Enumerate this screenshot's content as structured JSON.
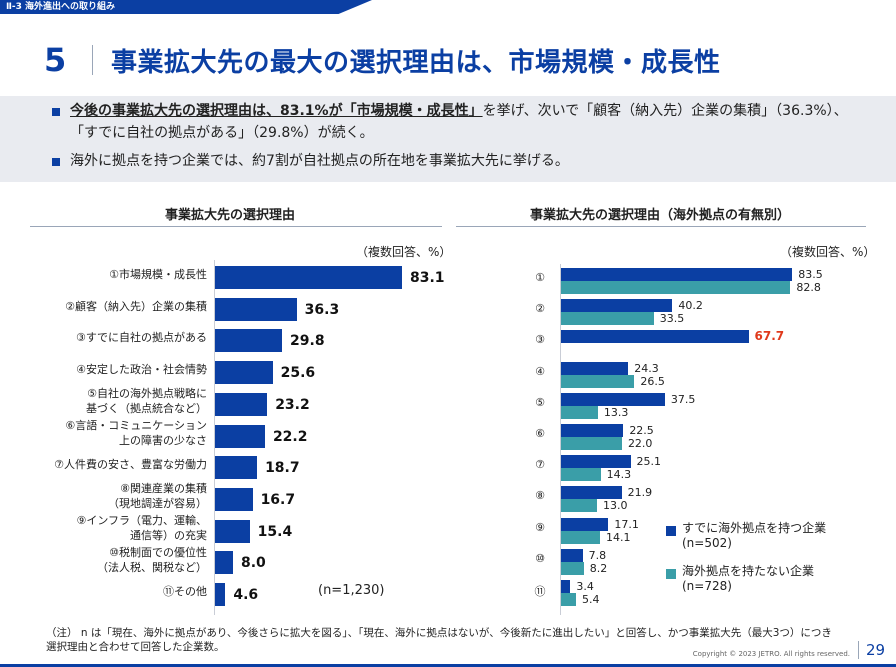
{
  "header": {
    "breadcrumb": "Ⅱ-3 海外進出への取り組み",
    "section_number": "5",
    "title": "事業拡大先の最大の選択理由は、市場規模・成長性"
  },
  "summary": {
    "bullet1_highlight": "今後の事業拡大先の選択理由は、83.1%が「市場規模・成長性」",
    "bullet1_rest": "を挙げ、次いで「顧客（納入先）企業の集積」（36.3%）、「すでに自社の拠点がある」（29.8%）が続く。",
    "bullet2": "海外に拠点を持つ企業では、約7割が自社拠点の所在地を事業拡大先に挙げる。"
  },
  "colors": {
    "brand": "#0b3fa3",
    "series_with_base": "#0b3fa3",
    "series_without_base": "#3a9ea8",
    "highlight": "#e0391b"
  },
  "chart_data": [
    {
      "type": "bar",
      "orientation": "horizontal",
      "title": "事業拡大先の選択理由",
      "unit_label": "（複数回答、%）",
      "n_label": "(n=1,230)",
      "categories": [
        "①市場規模・成長性",
        "②顧客（納入先）企業の集積",
        "③すでに自社の拠点がある",
        "④安定した政治・社会情勢",
        "⑤自社の海外拠点戦略に\n基づく（拠点統合など）",
        "⑥言語・コミュニケーション\n上の障害の少なさ",
        "⑦人件費の安さ、豊富な労働力",
        "⑧関連産業の集積\n（現地調達が容易）",
        "⑨インフラ（電力、運輸、\n通信等）の充実",
        "⑩税制面での優位性\n（法人税、関税など）",
        "⑪その他"
      ],
      "values": [
        83.1,
        36.3,
        29.8,
        25.6,
        23.2,
        22.2,
        18.7,
        16.7,
        15.4,
        8.0,
        4.6
      ],
      "value_labels": [
        "83.1",
        "36.3",
        "29.8",
        "25.6",
        "23.2",
        "22.2",
        "18.7",
        "16.7",
        "15.4",
        "8.0",
        "4.6"
      ],
      "xlim": [
        0,
        100
      ]
    },
    {
      "type": "bar",
      "orientation": "horizontal",
      "title": "事業拡大先の選択理由（海外拠点の有無別）",
      "unit_label": "（複数回答、%）",
      "categories": [
        "①",
        "②",
        "③",
        "④",
        "⑤",
        "⑥",
        "⑦",
        "⑧",
        "⑨",
        "⑩",
        "⑪"
      ],
      "series": [
        {
          "name": "すでに海外拠点を持つ企業",
          "n": "(n=502)",
          "values": [
            83.5,
            40.2,
            67.7,
            24.3,
            37.5,
            22.5,
            25.1,
            21.9,
            17.1,
            7.8,
            3.4
          ],
          "value_labels": [
            "83.5",
            "40.2",
            "67.7",
            "24.3",
            "37.5",
            "22.5",
            "25.1",
            "21.9",
            "17.1",
            "7.8",
            "3.4"
          ]
        },
        {
          "name": "海外拠点を持たない企業",
          "n": "(n=728)",
          "values": [
            82.8,
            33.5,
            null,
            26.5,
            13.3,
            22.0,
            14.3,
            13.0,
            14.1,
            8.2,
            5.4
          ],
          "value_labels": [
            "82.8",
            "33.5",
            "",
            "26.5",
            "13.3",
            "22.0",
            "14.3",
            "13.0",
            "14.1",
            "8.2",
            "5.4"
          ]
        }
      ],
      "highlighted_value": "67.7",
      "legend_position": "right",
      "xlim": [
        0,
        100
      ]
    }
  ],
  "footer": {
    "note_line1": "（注） n は「現在、海外に拠点があり、今後さらに拡大を図る」、「現在、海外に拠点はないが、今後新たに進出したい」と回答し、かつ事業拡大先（最大3つ）につき",
    "note_line2": "選択理由と合わせて回答した企業数。",
    "copyright": "Copyright © 2023 JETRO. All rights reserved.",
    "page_number": "29"
  }
}
